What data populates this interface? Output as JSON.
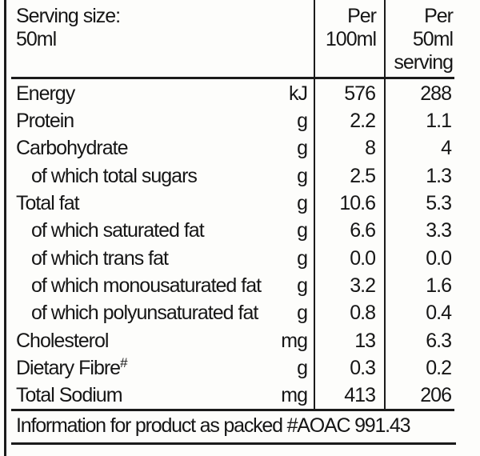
{
  "table": {
    "header": {
      "serving_size_line1": "Serving size:",
      "serving_size_line2": "50ml",
      "col_per100_line1": "Per",
      "col_per100_line2": "100ml",
      "col_per50_line1": "Per",
      "col_per50_line2": "50ml",
      "col_per50_line3": "serving"
    },
    "rows": [
      {
        "label": "Energy",
        "indent": false,
        "sup": "",
        "unit": "kJ",
        "per100": "576",
        "per50": "288"
      },
      {
        "label": "Protein",
        "indent": false,
        "sup": "",
        "unit": "g",
        "per100": "2.2",
        "per50": "1.1"
      },
      {
        "label": "Carbohydrate",
        "indent": false,
        "sup": "",
        "unit": "g",
        "per100": "8",
        "per50": "4"
      },
      {
        "label": "of which total sugars",
        "indent": true,
        "sup": "",
        "unit": "g",
        "per100": "2.5",
        "per50": "1.3"
      },
      {
        "label": "Total fat",
        "indent": false,
        "sup": "",
        "unit": "g",
        "per100": "10.6",
        "per50": "5.3"
      },
      {
        "label": "of which saturated fat",
        "indent": true,
        "sup": "",
        "unit": "g",
        "per100": "6.6",
        "per50": "3.3"
      },
      {
        "label": "of which trans fat",
        "indent": true,
        "sup": "",
        "unit": "g",
        "per100": "0.0",
        "per50": "0.0"
      },
      {
        "label": "of which monousaturated fat",
        "indent": true,
        "sup": "",
        "unit": "g",
        "per100": "3.2",
        "per50": "1.6"
      },
      {
        "label": "of which polyunsaturated fat",
        "indent": true,
        "sup": "",
        "unit": "g",
        "per100": "0.8",
        "per50": "0.4"
      },
      {
        "label": "Cholesterol",
        "indent": false,
        "sup": "",
        "unit": "mg",
        "per100": "13",
        "per50": "6.3"
      },
      {
        "label": "Dietary Fibre",
        "indent": false,
        "sup": "#",
        "unit": "g",
        "per100": "0.3",
        "per50": "0.2"
      },
      {
        "label": "Total Sodium",
        "indent": false,
        "sup": "",
        "unit": "mg",
        "per100": "413",
        "per50": "206"
      }
    ],
    "footer": "Information for product as packed #AOAC 991.43",
    "colors": {
      "ink": "#1b1b1b",
      "paper": "#fdfdfb"
    }
  }
}
